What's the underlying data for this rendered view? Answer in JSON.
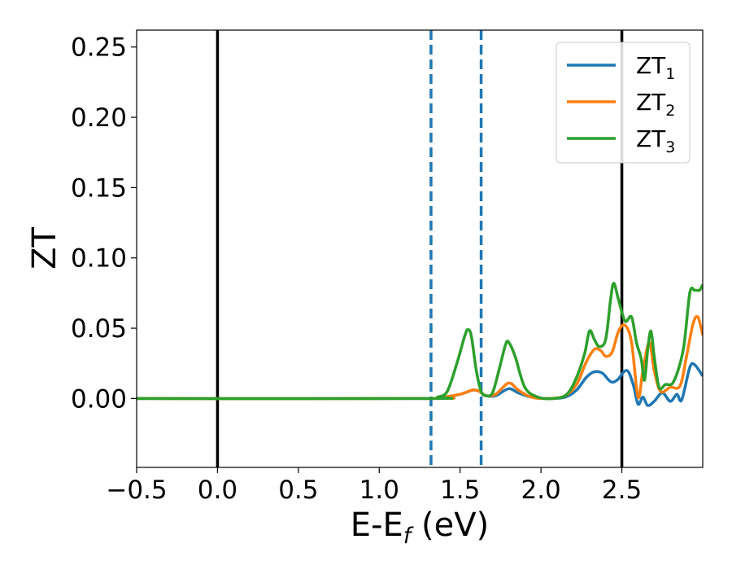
{
  "chart_data": {
    "type": "line",
    "title": "",
    "xlabel": {
      "main": "E-E",
      "sub": "f",
      "unit": " (eV)"
    },
    "ylabel": "ZT",
    "xlim": [
      -0.5,
      3.0
    ],
    "ylim": [
      -0.049,
      0.262
    ],
    "xticks": [
      -0.5,
      0.0,
      0.5,
      1.0,
      1.5,
      2.0,
      2.5
    ],
    "xtick_labels": [
      "−0.5",
      "0.0",
      "0.5",
      "1.0",
      "1.5",
      "2.0",
      "2.5"
    ],
    "yticks": [
      0.0,
      0.05,
      0.1,
      0.15,
      0.2,
      0.25
    ],
    "ytick_labels": [
      "0.00",
      "0.05",
      "0.10",
      "0.15",
      "0.20",
      "0.25"
    ],
    "grid": false,
    "legend_position": "top-right",
    "vlines": [
      {
        "x": 0.0,
        "style": "solid",
        "color": "#000000"
      },
      {
        "x": 2.5,
        "style": "solid",
        "color": "#000000"
      },
      {
        "x": 1.32,
        "style": "dashed",
        "color": "#1f77b4"
      },
      {
        "x": 1.63,
        "style": "dashed",
        "color": "#1f77b4"
      }
    ],
    "series": [
      {
        "name": "ZT",
        "sub": "1",
        "color": "#1f77b4",
        "points": [
          [
            -0.5,
            0
          ],
          [
            1.3,
            0
          ],
          [
            1.4,
            0.001
          ],
          [
            1.5,
            0.003
          ],
          [
            1.58,
            0.006
          ],
          [
            1.62,
            0.005
          ],
          [
            1.66,
            0.002
          ],
          [
            1.72,
            0.002
          ],
          [
            1.8,
            0.007
          ],
          [
            1.86,
            0.004
          ],
          [
            1.94,
            0.001
          ],
          [
            2.05,
            0
          ],
          [
            2.15,
            0.001
          ],
          [
            2.22,
            0.006
          ],
          [
            2.28,
            0.015
          ],
          [
            2.33,
            0.019
          ],
          [
            2.38,
            0.018
          ],
          [
            2.43,
            0.012
          ],
          [
            2.47,
            0.013
          ],
          [
            2.53,
            0.02
          ],
          [
            2.57,
            0.01
          ],
          [
            2.6,
            -0.004
          ],
          [
            2.63,
            0.001
          ],
          [
            2.66,
            -0.005
          ],
          [
            2.7,
            -0.002
          ],
          [
            2.75,
            0.004
          ],
          [
            2.8,
            -0.002
          ],
          [
            2.84,
            0.003
          ],
          [
            2.87,
            -0.001
          ],
          [
            2.92,
            0.022
          ],
          [
            2.95,
            0.024
          ],
          [
            3.0,
            0.016
          ]
        ]
      },
      {
        "name": "ZT",
        "sub": "2",
        "color": "#ff7f0e",
        "points": [
          [
            -0.5,
            0
          ],
          [
            1.3,
            0
          ],
          [
            1.4,
            0.001
          ],
          [
            1.5,
            0.003
          ],
          [
            1.58,
            0.006
          ],
          [
            1.62,
            0.005
          ],
          [
            1.66,
            0.002
          ],
          [
            1.72,
            0.003
          ],
          [
            1.8,
            0.011
          ],
          [
            1.86,
            0.006
          ],
          [
            1.94,
            0.001
          ],
          [
            2.05,
            0
          ],
          [
            2.15,
            0.002
          ],
          [
            2.22,
            0.01
          ],
          [
            2.28,
            0.026
          ],
          [
            2.33,
            0.035
          ],
          [
            2.37,
            0.034
          ],
          [
            2.4,
            0.03
          ],
          [
            2.44,
            0.033
          ],
          [
            2.48,
            0.048
          ],
          [
            2.52,
            0.052
          ],
          [
            2.56,
            0.04
          ],
          [
            2.6,
            0.001
          ],
          [
            2.63,
            0.02
          ],
          [
            2.67,
            0.04
          ],
          [
            2.7,
            0.02
          ],
          [
            2.74,
            0.005
          ],
          [
            2.8,
            0.008
          ],
          [
            2.86,
            0.009
          ],
          [
            2.9,
            0.03
          ],
          [
            2.94,
            0.053
          ],
          [
            2.97,
            0.058
          ],
          [
            3.0,
            0.045
          ]
        ]
      },
      {
        "name": "ZT",
        "sub": "3",
        "color": "#2ca02c",
        "points": [
          [
            -0.5,
            0
          ],
          [
            1.3,
            0
          ],
          [
            1.36,
            0.001
          ],
          [
            1.42,
            0.005
          ],
          [
            1.48,
            0.025
          ],
          [
            1.53,
            0.045
          ],
          [
            1.55,
            0.049
          ],
          [
            1.57,
            0.044
          ],
          [
            1.6,
            0.02
          ],
          [
            1.63,
            0.005
          ],
          [
            1.66,
            0.002
          ],
          [
            1.7,
            0.004
          ],
          [
            1.74,
            0.02
          ],
          [
            1.78,
            0.038
          ],
          [
            1.8,
            0.04
          ],
          [
            1.84,
            0.03
          ],
          [
            1.9,
            0.008
          ],
          [
            1.98,
            0.001
          ],
          [
            2.08,
            0
          ],
          [
            2.16,
            0.003
          ],
          [
            2.22,
            0.015
          ],
          [
            2.27,
            0.032
          ],
          [
            2.3,
            0.048
          ],
          [
            2.33,
            0.042
          ],
          [
            2.36,
            0.037
          ],
          [
            2.4,
            0.042
          ],
          [
            2.43,
            0.07
          ],
          [
            2.45,
            0.082
          ],
          [
            2.48,
            0.07
          ],
          [
            2.52,
            0.055
          ],
          [
            2.56,
            0.058
          ],
          [
            2.59,
            0.04
          ],
          [
            2.62,
            0.028
          ],
          [
            2.64,
            0.013
          ],
          [
            2.66,
            0.035
          ],
          [
            2.68,
            0.048
          ],
          [
            2.7,
            0.03
          ],
          [
            2.73,
            0.008
          ],
          [
            2.77,
            0.01
          ],
          [
            2.82,
            0.012
          ],
          [
            2.88,
            0.035
          ],
          [
            2.92,
            0.075
          ],
          [
            2.95,
            0.077
          ],
          [
            2.98,
            0.077
          ],
          [
            3.0,
            0.081
          ]
        ]
      }
    ]
  }
}
